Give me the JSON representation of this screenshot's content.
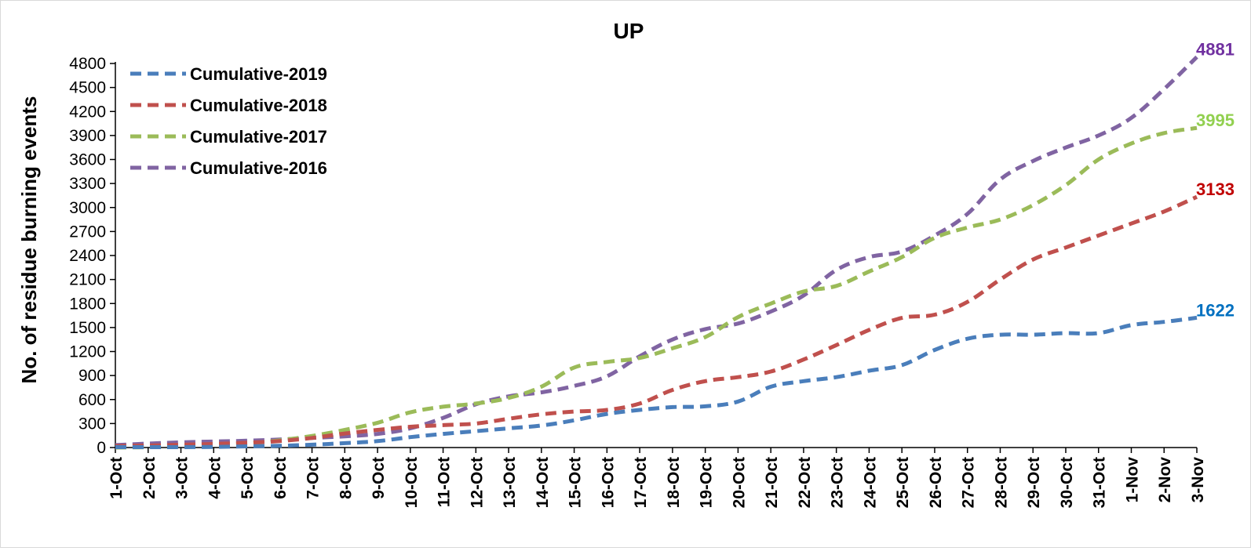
{
  "chart_data": {
    "type": "line",
    "title": "UP",
    "xlabel": "",
    "ylabel": "No. of residue burning events",
    "ylim": [
      0,
      4800
    ],
    "yticks": [
      "0",
      "300",
      "600",
      "900",
      "1200",
      "1500",
      "1800",
      "2100",
      "2400",
      "2700",
      "3000",
      "3300",
      "3600",
      "3900",
      "4200",
      "4500",
      "4800"
    ],
    "categories": [
      "1-Oct",
      "2-Oct",
      "3-Oct",
      "4-Oct",
      "5-Oct",
      "6-Oct",
      "7-Oct",
      "8-Oct",
      "9-Oct",
      "10-Oct",
      "11-Oct",
      "12-Oct",
      "13-Oct",
      "14-Oct",
      "15-Oct",
      "16-Oct",
      "17-Oct",
      "18-Oct",
      "19-Oct",
      "20-Oct",
      "21-Oct",
      "22-Oct",
      "23-Oct",
      "24-Oct",
      "25-Oct",
      "26-Oct",
      "27-Oct",
      "28-Oct",
      "29-Oct",
      "30-Oct",
      "31-Oct",
      "1-Nov",
      "2-Nov",
      "3-Nov"
    ],
    "grid": false,
    "legend_position": "top-left",
    "series": [
      {
        "name": "Cumulative-2019",
        "color": "#4A7EBB",
        "end_label": "1622",
        "end_label_color": "#0070C0",
        "values": [
          5,
          5,
          5,
          8,
          15,
          22,
          35,
          55,
          80,
          130,
          170,
          205,
          240,
          275,
          340,
          420,
          470,
          505,
          515,
          575,
          760,
          830,
          880,
          960,
          1030,
          1220,
          1360,
          1410,
          1410,
          1430,
          1430,
          1530,
          1570,
          1622
        ]
      },
      {
        "name": "Cumulative-2018",
        "color": "#C0504D",
        "end_label": "3133",
        "end_label_color": "#C00000",
        "values": [
          20,
          25,
          35,
          45,
          60,
          80,
          120,
          175,
          220,
          260,
          280,
          300,
          360,
          415,
          450,
          470,
          550,
          720,
          830,
          880,
          950,
          1100,
          1280,
          1470,
          1620,
          1660,
          1820,
          2100,
          2350,
          2500,
          2650,
          2800,
          2950,
          3133
        ]
      },
      {
        "name": "Cumulative-2017",
        "color": "#9BBB59",
        "end_label": "3995",
        "end_label_color": "#92D050",
        "values": [
          0,
          5,
          15,
          30,
          50,
          90,
          145,
          220,
          310,
          440,
          510,
          550,
          620,
          760,
          1000,
          1070,
          1120,
          1240,
          1380,
          1630,
          1800,
          1950,
          2020,
          2200,
          2380,
          2620,
          2750,
          2850,
          3030,
          3280,
          3600,
          3800,
          3930,
          3995
        ]
      },
      {
        "name": "Cumulative-2016",
        "color": "#8064A2",
        "end_label": "4881",
        "end_label_color": "#7030A0",
        "values": [
          30,
          50,
          65,
          75,
          85,
          100,
          120,
          140,
          170,
          240,
          370,
          540,
          640,
          690,
          770,
          890,
          1140,
          1350,
          1480,
          1550,
          1700,
          1900,
          2220,
          2380,
          2450,
          2650,
          2920,
          3350,
          3580,
          3750,
          3900,
          4120,
          4480,
          4881
        ]
      }
    ]
  }
}
